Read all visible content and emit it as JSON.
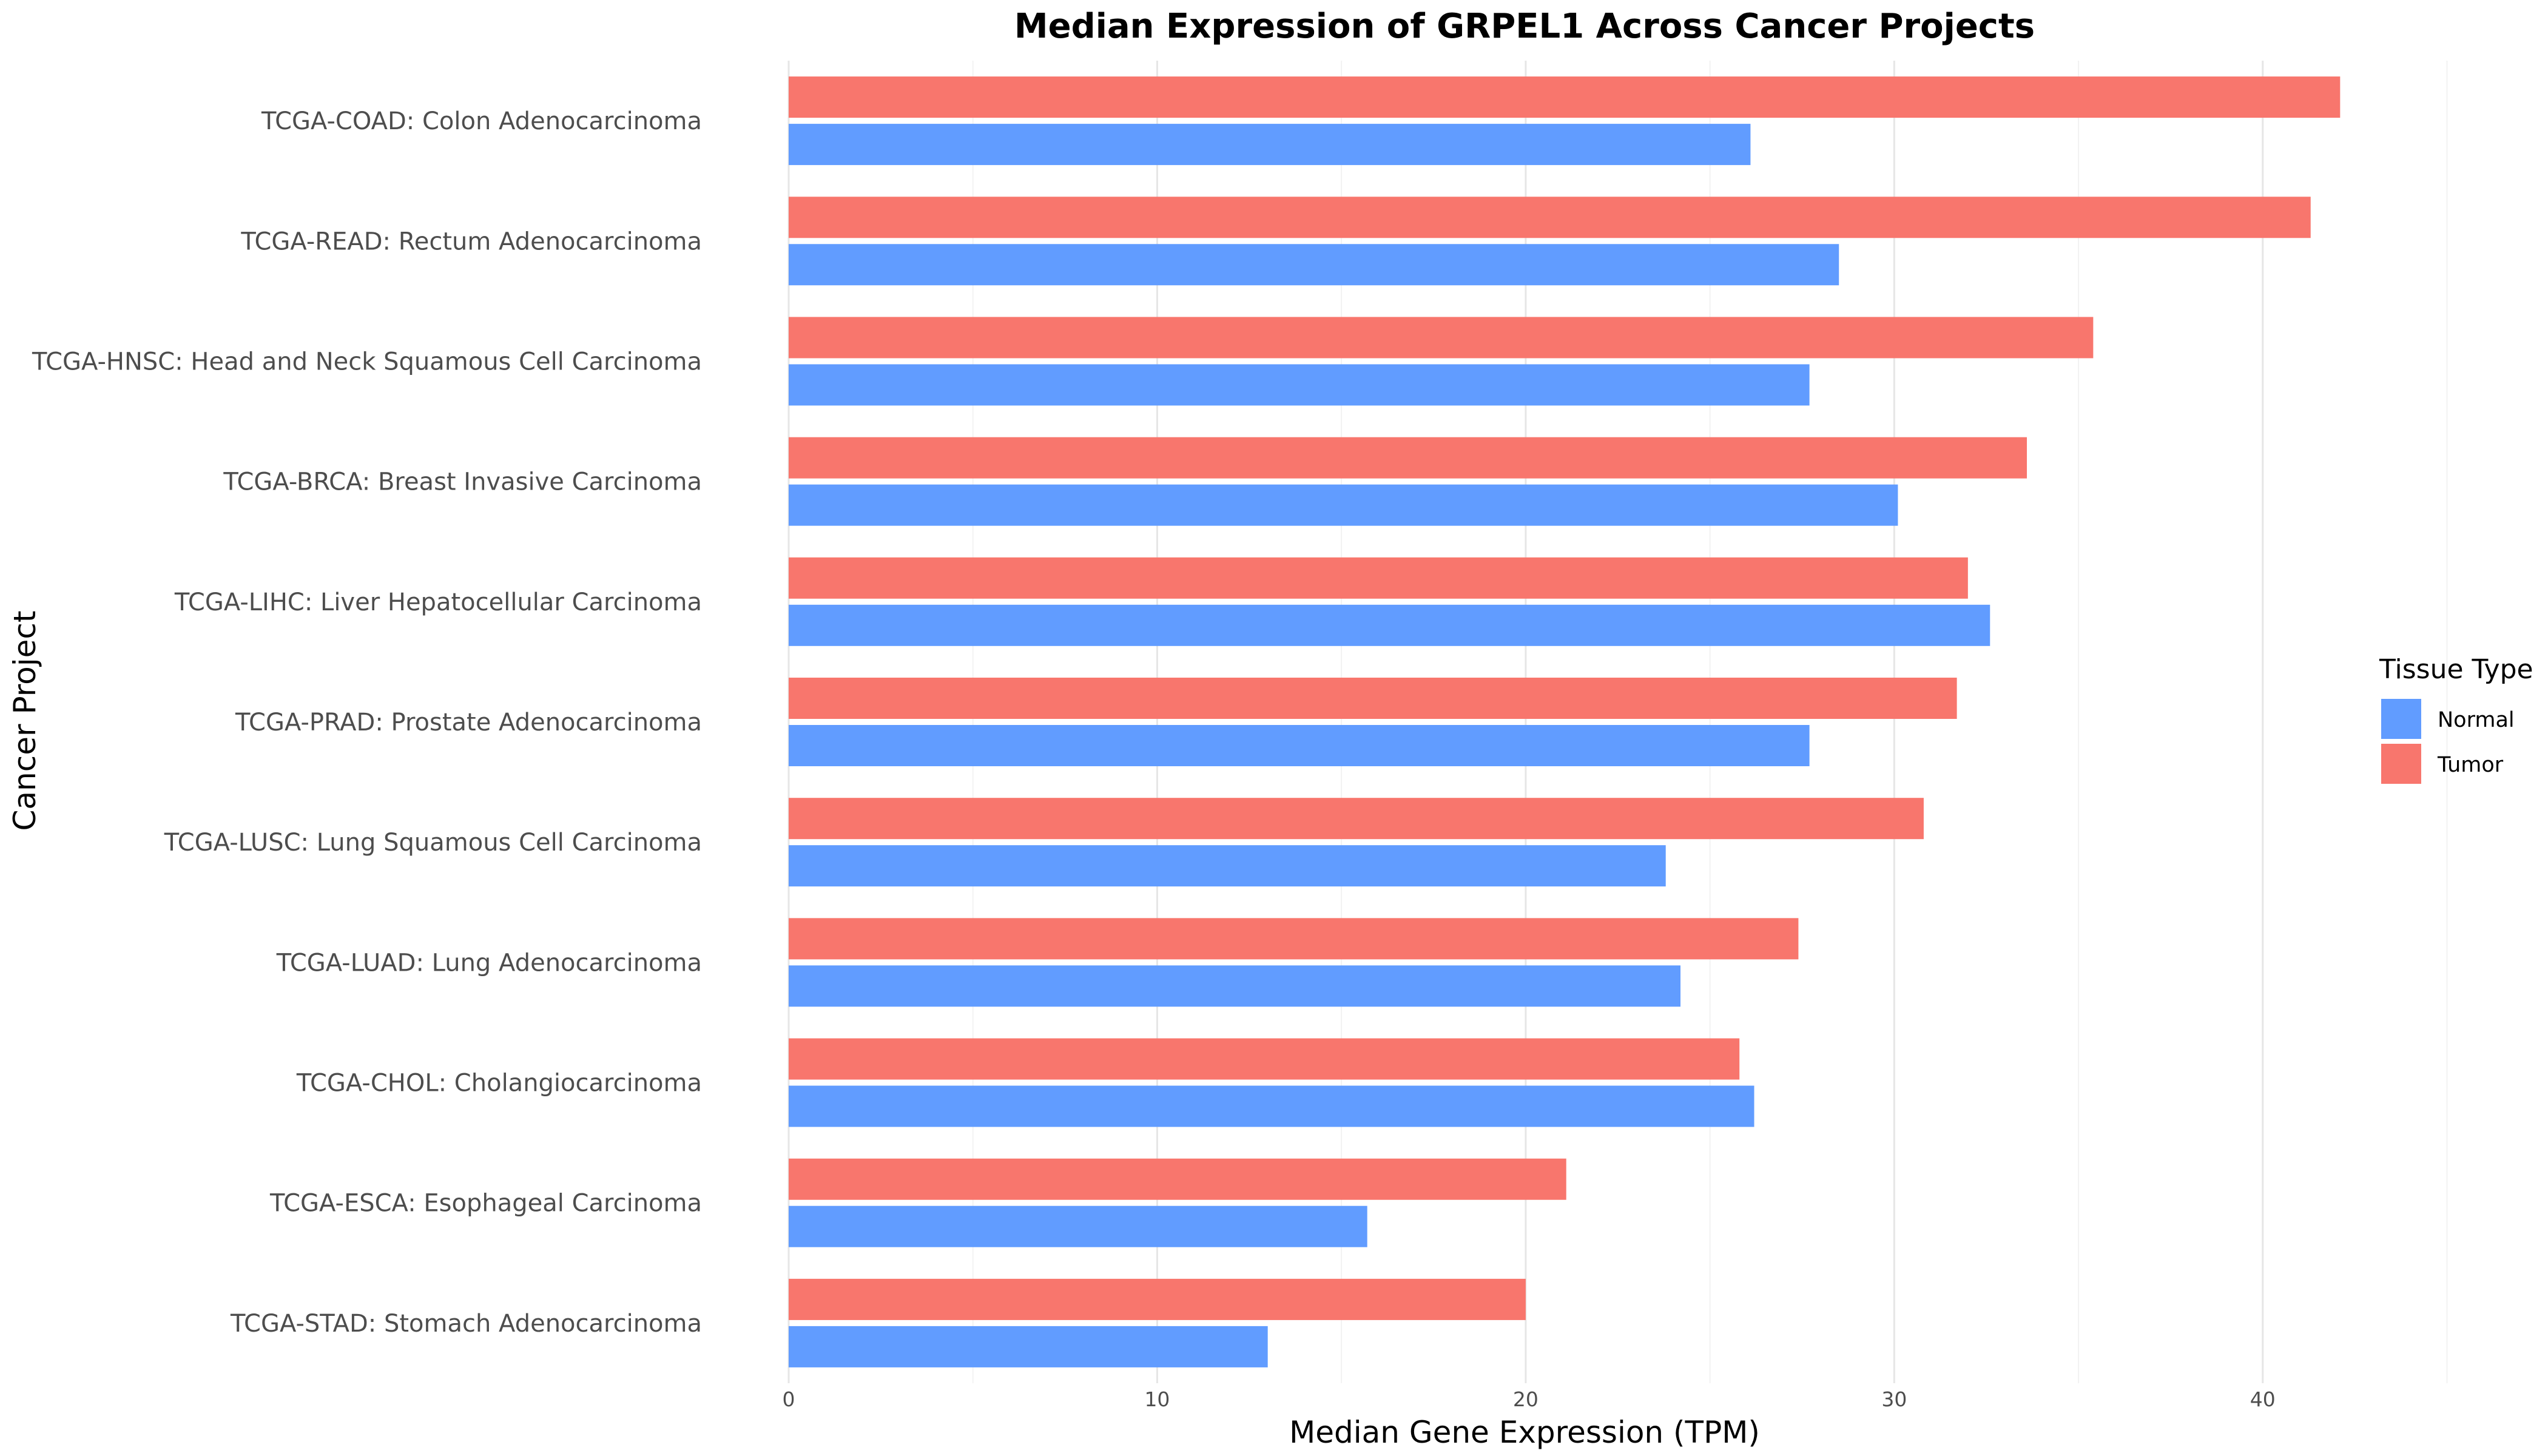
{
  "chart_data": {
    "type": "bar",
    "orientation": "horizontal",
    "title": "Median Expression of GRPEL1 Across Cancer Projects",
    "xlabel": "Median Gene Expression (TPM)",
    "ylabel": "Cancer Project",
    "xlim": [
      0,
      47
    ],
    "x_ticks": [
      "0",
      "10",
      "20",
      "30",
      "40"
    ],
    "grid": true,
    "legend": {
      "title": "Tissue Type",
      "placement": "right"
    },
    "categories": [
      "TCGA-COAD: Colon Adenocarcinoma",
      "TCGA-READ: Rectum Adenocarcinoma",
      "TCGA-HNSC: Head and Neck Squamous Cell Carcinoma",
      "TCGA-BRCA: Breast Invasive Carcinoma",
      "TCGA-LIHC: Liver Hepatocellular Carcinoma",
      "TCGA-PRAD: Prostate Adenocarcinoma",
      "TCGA-LUSC: Lung Squamous Cell Carcinoma",
      "TCGA-LUAD: Lung Adenocarcinoma",
      "TCGA-CHOL: Cholangiocarcinoma",
      "TCGA-ESCA: Esophageal Carcinoma",
      "TCGA-STAD: Stomach Adenocarcinoma"
    ],
    "series": [
      {
        "name": "Normal",
        "color": "#619CFF",
        "values": [
          26.1,
          28.5,
          27.7,
          30.1,
          32.6,
          27.7,
          23.8,
          24.2,
          26.2,
          15.7,
          13.0
        ]
      },
      {
        "name": "Tumor",
        "color": "#F8766D",
        "values": [
          42.1,
          41.3,
          35.4,
          33.6,
          32.0,
          31.7,
          30.8,
          27.4,
          25.8,
          21.1,
          20.0
        ]
      }
    ]
  }
}
